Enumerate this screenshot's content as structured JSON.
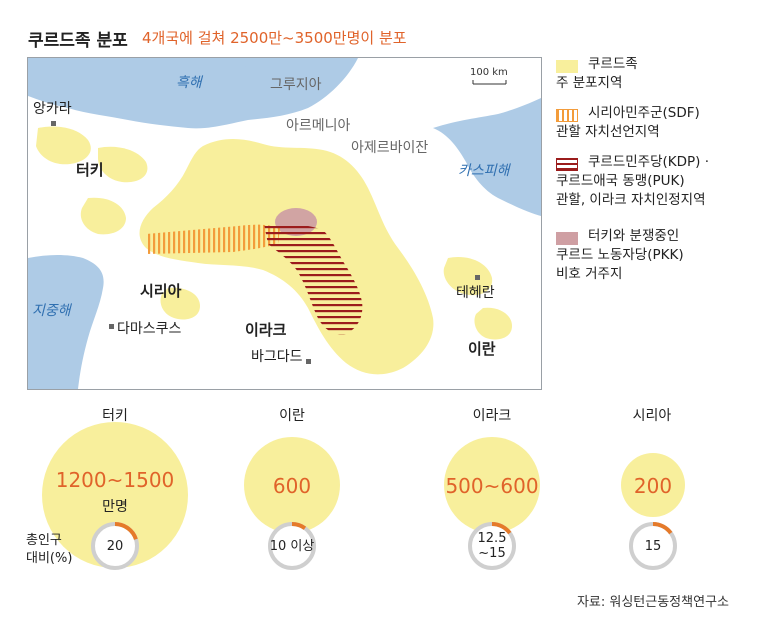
{
  "header": {
    "title": "쿠르드족 분포",
    "subtitle": "4개국에 걸쳐 2500만~3500만명이 분포"
  },
  "map": {
    "scale": "100 km",
    "seas": [
      "흑해",
      "카스피해",
      "지중해"
    ],
    "countries": [
      "터키",
      "시리아",
      "이라크",
      "이란"
    ],
    "neighbors": [
      "그루지아",
      "아르메니아",
      "아제르바이잔"
    ],
    "cities": [
      "앙카라",
      "다마스쿠스",
      "바그다드",
      "테헤란"
    ]
  },
  "legend": [
    {
      "line1": "쿠르드족",
      "line2": "주 분포지역",
      "color": "#f8ef9c"
    },
    {
      "line1": "시리아민주군(SDF)",
      "line2": "관할 자치선언지역",
      "color": "#f39c3b"
    },
    {
      "line1": "쿠르드민주당(KDP) ·",
      "line2": "쿠르드애국 동맹(PUK)",
      "line3": "관할, 이라크 자치인정지역",
      "color": "#9b1c1c"
    },
    {
      "line1": "터키와 분쟁중인",
      "line2": "쿠르드 노동자당(PKK)",
      "line3": "비호 거주지",
      "color": "#cf9fa3"
    }
  ],
  "population": {
    "ratio_label_line1": "총인구",
    "ratio_label_line2": "대비(%)",
    "unit": "만명",
    "countries": [
      {
        "name": "터키",
        "value": "1200~1500",
        "ratio": "20",
        "ratio_fraction": 0.2
      },
      {
        "name": "이란",
        "value": "600",
        "ratio": "10 이상",
        "ratio_fraction": 0.1
      },
      {
        "name": "이라크",
        "value": "500~600",
        "ratio_line1": "12.5",
        "ratio_line2": "~15",
        "ratio_fraction": 0.15
      },
      {
        "name": "시리아",
        "value": "200",
        "ratio": "15",
        "ratio_fraction": 0.15
      }
    ]
  },
  "source": "자료: 워싱턴근동정책연구소"
}
